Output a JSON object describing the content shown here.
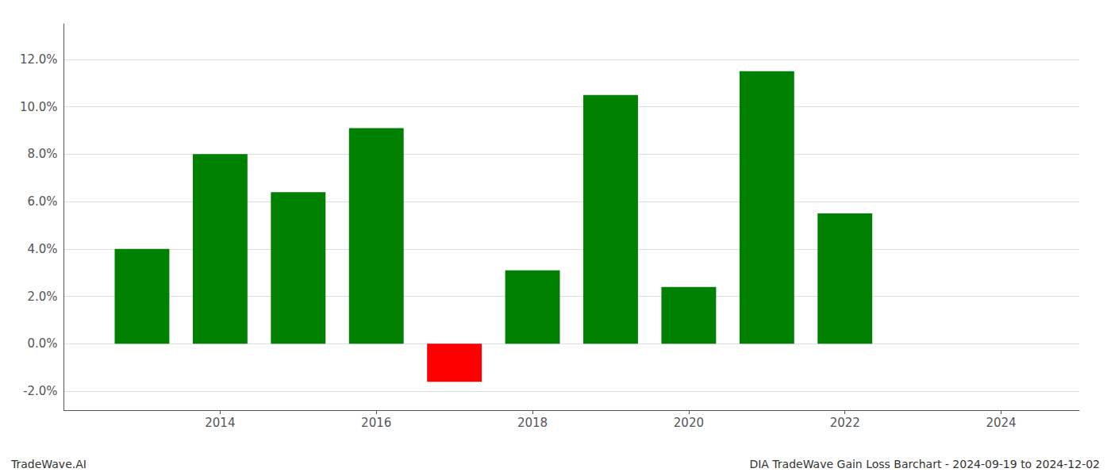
{
  "chart_data": {
    "type": "bar",
    "x": [
      2013,
      2014,
      2015,
      2016,
      2017,
      2018,
      2019,
      2020,
      2021,
      2022
    ],
    "values": [
      0.04,
      0.08,
      0.064,
      0.091,
      -0.016,
      0.031,
      0.105,
      0.024,
      0.115,
      0.055
    ],
    "colors": [
      "#008000",
      "#008000",
      "#008000",
      "#008000",
      "#ff0000",
      "#008000",
      "#008000",
      "#008000",
      "#008000",
      "#008000"
    ],
    "xlim": [
      2012.0,
      2025.0
    ],
    "xticks": [
      2014,
      2016,
      2018,
      2020,
      2022,
      2024
    ],
    "ylim": [
      -0.028,
      0.135
    ],
    "yticks": [
      {
        "value": -0.02,
        "label": "-2.0%"
      },
      {
        "value": 0.0,
        "label": "0.0%"
      },
      {
        "value": 0.02,
        "label": "2.0%"
      },
      {
        "value": 0.04,
        "label": "4.0%"
      },
      {
        "value": 0.06,
        "label": "6.0%"
      },
      {
        "value": 0.08,
        "label": "8.0%"
      },
      {
        "value": 0.1,
        "label": "10.0%"
      },
      {
        "value": 0.12,
        "label": "12.0%"
      }
    ],
    "grid": true,
    "annotations": [
      "TradeWave.AI",
      "DIA TradeWave Gain Loss Barchart - 2024-09-19 to 2024-12-02"
    ]
  }
}
